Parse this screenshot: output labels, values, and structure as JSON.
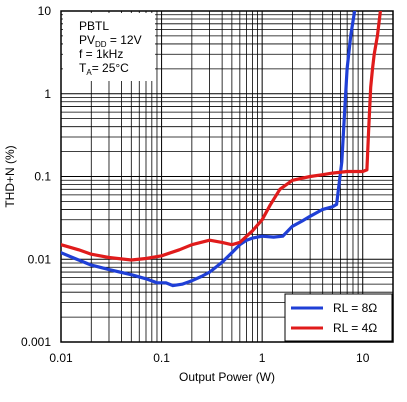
{
  "chart_data": {
    "type": "line",
    "xlabel": "Output Power (W)",
    "ylabel": "THD+N (%)",
    "xscale": "log",
    "yscale": "log",
    "xlim": [
      0.01,
      20
    ],
    "ylim": [
      0.001,
      10
    ],
    "x_ticks": [
      {
        "value": 0.01,
        "label": "0.01"
      },
      {
        "value": 0.1,
        "label": "0.1"
      },
      {
        "value": 1,
        "label": "1"
      },
      {
        "value": 10,
        "label": "10"
      }
    ],
    "y_ticks": [
      {
        "value": 0.001,
        "label": "0.001"
      },
      {
        "value": 0.01,
        "label": "0.01"
      },
      {
        "value": 0.1,
        "label": "0.1"
      },
      {
        "value": 1,
        "label": "1"
      },
      {
        "value": 10,
        "label": "10"
      }
    ],
    "grid": true,
    "conditions": {
      "line1": "PBTL",
      "line2_main": "PV",
      "line2_sub": "DD",
      "line2_rest": " = 12V",
      "line3": "f = 1kHz",
      "line4_main": "T",
      "line4_sub": "A",
      "line4_rest": "= 25°C"
    },
    "legend_position": "bottom-right",
    "series": [
      {
        "name": "RL = 8Ω",
        "color": "#1f3fd6",
        "points": [
          [
            0.01,
            0.012
          ],
          [
            0.013,
            0.0105
          ],
          [
            0.02,
            0.0085
          ],
          [
            0.03,
            0.0075
          ],
          [
            0.05,
            0.0065
          ],
          [
            0.07,
            0.0058
          ],
          [
            0.09,
            0.0052
          ],
          [
            0.11,
            0.0052
          ],
          [
            0.13,
            0.0048
          ],
          [
            0.16,
            0.005
          ],
          [
            0.2,
            0.0055
          ],
          [
            0.25,
            0.0062
          ],
          [
            0.3,
            0.007
          ],
          [
            0.4,
            0.0092
          ],
          [
            0.5,
            0.012
          ],
          [
            0.6,
            0.015
          ],
          [
            0.7,
            0.017
          ],
          [
            0.8,
            0.018
          ],
          [
            1.0,
            0.019
          ],
          [
            1.3,
            0.0185
          ],
          [
            1.6,
            0.019
          ],
          [
            2.0,
            0.025
          ],
          [
            2.5,
            0.029
          ],
          [
            3.0,
            0.033
          ],
          [
            4.0,
            0.04
          ],
          [
            5.0,
            0.043
          ],
          [
            5.5,
            0.046
          ],
          [
            6.2,
            0.15
          ],
          [
            6.6,
            0.6
          ],
          [
            7.0,
            2.0
          ],
          [
            7.6,
            5.0
          ],
          [
            8.3,
            10.0
          ]
        ]
      },
      {
        "name": "RL = 4Ω",
        "color": "#e01b1b",
        "points": [
          [
            0.01,
            0.015
          ],
          [
            0.015,
            0.013
          ],
          [
            0.02,
            0.0115
          ],
          [
            0.03,
            0.0105
          ],
          [
            0.05,
            0.0098
          ],
          [
            0.07,
            0.0102
          ],
          [
            0.1,
            0.011
          ],
          [
            0.15,
            0.013
          ],
          [
            0.2,
            0.015
          ],
          [
            0.3,
            0.017
          ],
          [
            0.4,
            0.016
          ],
          [
            0.5,
            0.015
          ],
          [
            0.6,
            0.016
          ],
          [
            0.7,
            0.019
          ],
          [
            0.8,
            0.022
          ],
          [
            1.0,
            0.03
          ],
          [
            1.2,
            0.045
          ],
          [
            1.5,
            0.07
          ],
          [
            2.0,
            0.09
          ],
          [
            3.0,
            0.1
          ],
          [
            4.0,
            0.105
          ],
          [
            5.0,
            0.11
          ],
          [
            7.0,
            0.115
          ],
          [
            10.0,
            0.115
          ],
          [
            11.0,
            0.12
          ],
          [
            11.5,
            0.4
          ],
          [
            12.0,
            1.2
          ],
          [
            12.5,
            2.0
          ],
          [
            13.0,
            3.0
          ],
          [
            14.0,
            5.0
          ],
          [
            15.0,
            10.0
          ]
        ]
      }
    ]
  }
}
